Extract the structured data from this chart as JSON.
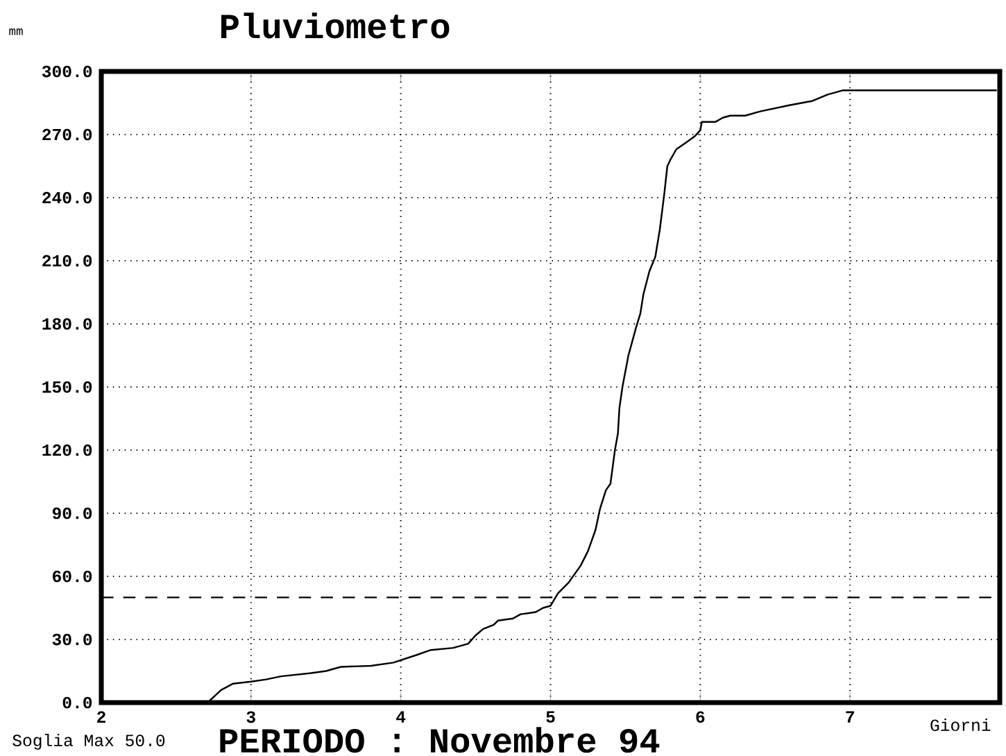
{
  "chart_data": {
    "type": "line",
    "title": "Pluviometro",
    "subtitle": "PERIODO : Novembre 94",
    "xlabel": "Giorni",
    "ylabel": "mm",
    "xlim": [
      2,
      8
    ],
    "ylim": [
      0,
      300
    ],
    "xticks": [
      2,
      3,
      4,
      5,
      6,
      7
    ],
    "yticks": [
      {
        "value": 0,
        "label": "0.0"
      },
      {
        "value": 30,
        "label": "30.0"
      },
      {
        "value": 60,
        "label": "60.0"
      },
      {
        "value": 90,
        "label": "90.0"
      },
      {
        "value": 120,
        "label": "120.0"
      },
      {
        "value": 150,
        "label": "150.0"
      },
      {
        "value": 180,
        "label": "180.0"
      },
      {
        "value": 210,
        "label": "210.0"
      },
      {
        "value": 240,
        "label": "240.0"
      },
      {
        "value": 270,
        "label": "270.0"
      },
      {
        "value": 300,
        "label": "300.0"
      }
    ],
    "grid": true,
    "line_style": "solid",
    "marker": "none",
    "ref_lines": [
      {
        "axis": "y",
        "value": 50,
        "label": "Soglia Max 50.0",
        "line_style": "dashed"
      }
    ],
    "series": [
      {
        "color": "#000000",
        "x": [
          2,
          2.71,
          2.8,
          2.88,
          3.0,
          3.1,
          3.2,
          3.4,
          3.5,
          3.6,
          3.8,
          3.95,
          4.1,
          4.2,
          4.35,
          4.45,
          4.5,
          4.55,
          4.62,
          4.65,
          4.75,
          4.8,
          4.9,
          4.95,
          5.0,
          5.05,
          5.12,
          5.2,
          5.25,
          5.3,
          5.33,
          5.37,
          5.4,
          5.43,
          5.45,
          5.46,
          5.48,
          5.52,
          5.57,
          5.6,
          5.62,
          5.66,
          5.7,
          5.73,
          5.76,
          5.78,
          5.8,
          5.84,
          5.9,
          5.96,
          6.0,
          6.01,
          6.1,
          6.15,
          6.2,
          6.3,
          6.4,
          6.6,
          6.75,
          6.85,
          6.95,
          7.2,
          7.98
        ],
        "values": [
          0,
          0,
          6,
          9,
          10,
          11,
          12.5,
          14,
          15,
          17,
          17.5,
          19,
          22.5,
          25,
          26,
          28,
          32,
          35,
          37,
          39,
          40,
          42,
          43,
          45,
          46,
          52,
          57,
          65,
          72,
          82,
          92,
          101,
          104,
          120,
          128,
          140,
          150,
          165,
          178,
          185,
          194,
          205,
          212,
          225,
          242,
          255,
          258,
          263,
          266,
          269,
          272,
          276,
          276,
          278,
          279,
          279,
          281,
          284,
          286,
          289,
          291,
          291,
          291
        ]
      }
    ]
  }
}
